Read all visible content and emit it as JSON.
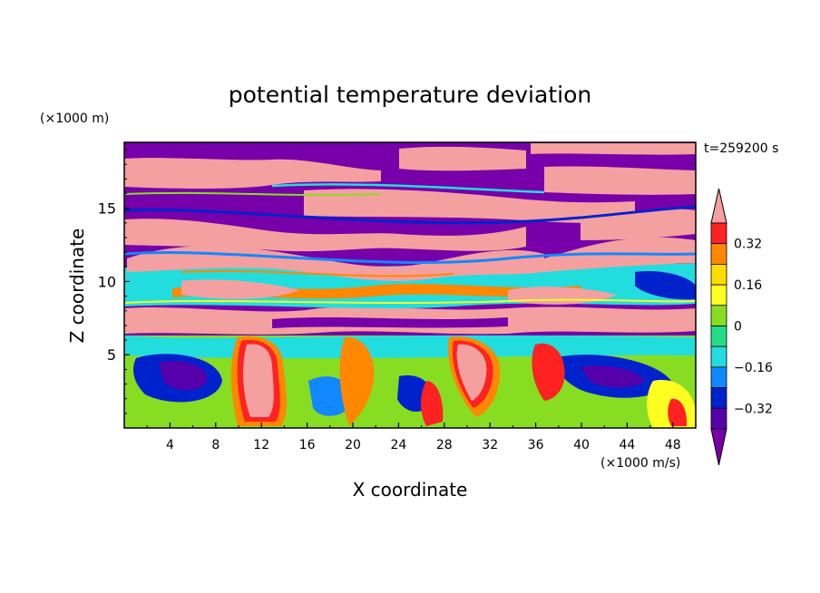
{
  "chart_data": {
    "type": "heatmap",
    "title": "potential temperature deviation",
    "xlabel": "X coordinate",
    "ylabel": "Z coordinate",
    "x_unit": "(×1000 m/s)",
    "y_unit": "(×1000 m)",
    "time_label": "t=259200 s",
    "xlim": [
      0,
      50
    ],
    "ylim": [
      0,
      19.5
    ],
    "x_ticks": [
      "4",
      "8",
      "12",
      "16",
      "20",
      "24",
      "28",
      "32",
      "36",
      "40",
      "44",
      "48"
    ],
    "y_ticks": [
      "5",
      "10",
      "15"
    ],
    "colorbar": {
      "labels": [
        "0.32",
        "0.16",
        "0",
        "−0.16",
        "−0.32"
      ],
      "colors": [
        "#f4a0a0",
        "#ff2222",
        "#ff8800",
        "#ffdd00",
        "#ffff22",
        "#88dd22",
        "#22dd88",
        "#22dddd",
        "#1188ff",
        "#0022cc",
        "#5500aa",
        "#7700aa"
      ]
    },
    "fill_colors": {
      "pink": "#f4a0a0",
      "purple": "#7700aa",
      "dark_blue": "#0022cc",
      "blue": "#1188ff",
      "cyan": "#22dddd",
      "teal": "#22dd88",
      "green": "#88dd22",
      "yellow": "#ffff22",
      "orange": "#ff8800",
      "red": "#ff2222"
    }
  }
}
